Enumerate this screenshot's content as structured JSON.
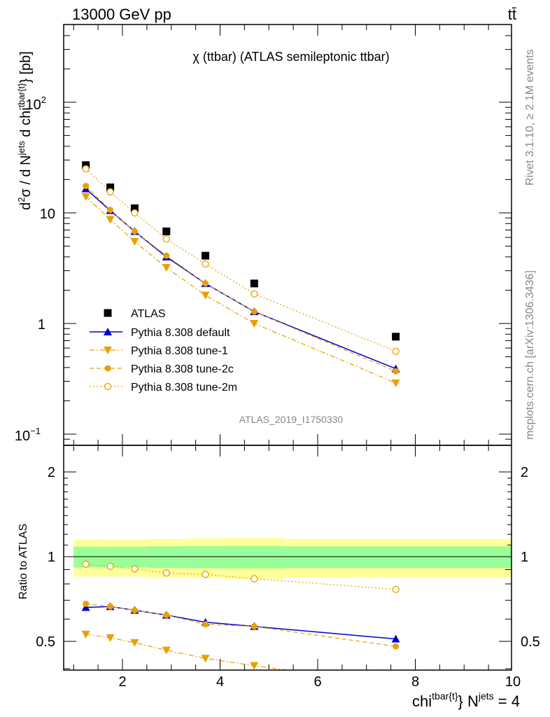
{
  "header": {
    "title": "13000 GeV pp",
    "process": "tt̄"
  },
  "side_labels": {
    "rivet": "Rivet 3.1.10, ≥ 2.1M events",
    "mcplots": "mcplots.cern.ch [arXiv:1306.3436]"
  },
  "top_panel": {
    "title": "χ (ttbar) (ATLAS semileptonic ttbar)",
    "ylabel": "d²σ / d N^jets d chi^tbar{t} [pb]",
    "analysis_id": "ATLAS_2019_I1750330",
    "yticks": {
      "t1": "10",
      "t2": "10",
      "t2sup": "2",
      "t3": "10",
      "t3sup": "−1",
      "t4": "1"
    }
  },
  "bottom_panel": {
    "ylabel": "Ratio to ATLAS",
    "ytick_labels": [
      "0.5",
      "1",
      "2"
    ]
  },
  "x_axis": {
    "label": "chi^tbar{t} N^jets = 4",
    "tick_labels": [
      "2",
      "4",
      "6",
      "8",
      "10"
    ]
  },
  "legend": {
    "atlas": "ATLAS",
    "default": "Pythia 8.308 default",
    "tune1": "Pythia 8.308 tune-1",
    "tune2c": "Pythia 8.308 tune-2c",
    "tune2m": "Pythia 8.308 tune-2m"
  },
  "colors": {
    "data": "#000000",
    "default": "#0000cc",
    "tunes": "#e8a000",
    "band_inner": "#99ff99",
    "band_outer": "#ffff99"
  },
  "chart_data": [
    {
      "type": "scatter",
      "title": "χ (ttbar) (ATLAS semileptonic ttbar)",
      "xlim": [
        0.8,
        10.0
      ],
      "ylim": [
        0.08,
        500
      ],
      "yscale": "log",
      "x": [
        1.25,
        1.75,
        2.25,
        2.9,
        3.7,
        4.7,
        7.6
      ],
      "series": [
        {
          "name": "ATLAS",
          "marker": "square",
          "values": [
            27.0,
            17.0,
            11.0,
            6.8,
            4.1,
            2.3,
            0.76
          ]
        },
        {
          "name": "Pythia 8.308 default",
          "marker": "triangle-up",
          "line": "solid",
          "values": [
            16.5,
            10.5,
            6.8,
            4.0,
            2.3,
            1.28,
            0.39
          ]
        },
        {
          "name": "Pythia 8.308 tune-1",
          "marker": "triangle-down",
          "line": "dashdot",
          "values": [
            14.0,
            8.7,
            5.5,
            3.2,
            1.8,
            1.0,
            0.29
          ]
        },
        {
          "name": "Pythia 8.308 tune-2c",
          "marker": "circle",
          "line": "dashed",
          "values": [
            17.5,
            10.6,
            6.8,
            4.1,
            2.3,
            1.28,
            0.37
          ]
        },
        {
          "name": "Pythia 8.308 tune-2m",
          "marker": "open-circle",
          "line": "dotted",
          "values": [
            25.0,
            15.5,
            10.0,
            5.8,
            3.45,
            1.85,
            0.56
          ]
        }
      ]
    },
    {
      "type": "line",
      "ylabel": "Ratio to ATLAS",
      "xlim": [
        0.8,
        10.0
      ],
      "ylim": [
        0.4,
        2.4
      ],
      "yscale": "log",
      "x": [
        1.25,
        1.75,
        2.25,
        2.9,
        3.7,
        4.7,
        7.6
      ],
      "bands": {
        "x_edges": [
          1.0,
          1.5,
          2.0,
          2.5,
          3.3,
          4.1,
          5.3,
          10.0
        ],
        "inner_half": [
          0.085,
          0.085,
          0.085,
          0.088,
          0.09,
          0.092,
          0.088
        ],
        "outer_half": [
          0.15,
          0.15,
          0.15,
          0.155,
          0.16,
          0.165,
          0.155
        ]
      },
      "series": [
        {
          "name": "Pythia 8.308 default",
          "values": [
            0.66,
            0.665,
            0.645,
            0.62,
            0.585,
            0.565,
            0.51
          ]
        },
        {
          "name": "Pythia 8.308 tune-1",
          "values": [
            0.53,
            0.515,
            0.495,
            0.465,
            0.435,
            0.41,
            0.35
          ]
        },
        {
          "name": "Pythia 8.308 tune-2c",
          "values": [
            0.68,
            0.665,
            0.645,
            0.62,
            0.575,
            0.565,
            0.48
          ]
        },
        {
          "name": "Pythia 8.308 tune-2m",
          "values": [
            0.94,
            0.925,
            0.905,
            0.875,
            0.865,
            0.835,
            0.765
          ]
        }
      ]
    }
  ]
}
